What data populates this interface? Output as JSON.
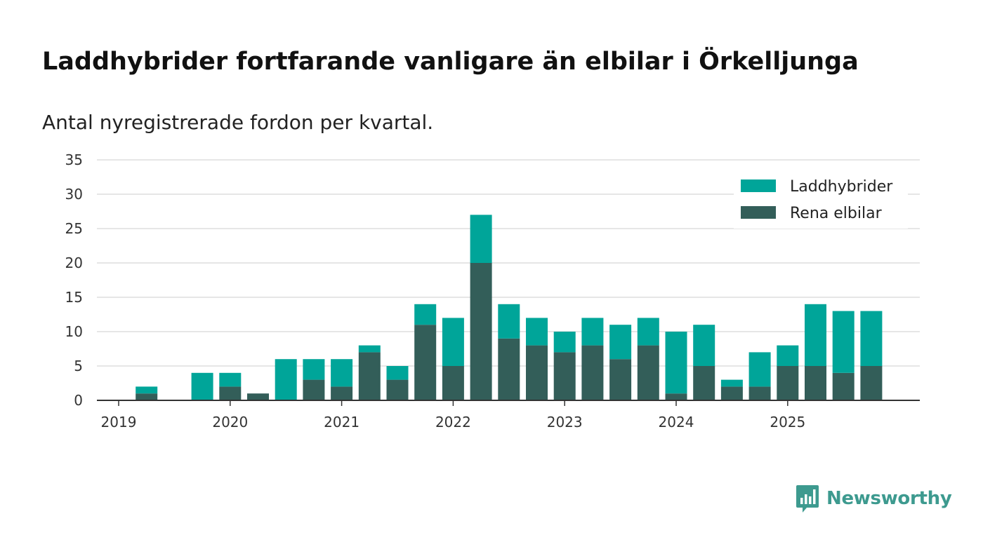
{
  "title": "Laddhybrider fortfarande vanligare än elbilar i Örkelljunga",
  "subtitle": "Antal nyregistrerade fordon per kvartal.",
  "brand": "Newsworthy",
  "colors": {
    "phev": "#00a599",
    "bev": "#335e59",
    "grid": "#dddddd",
    "axis": "#333333"
  },
  "chart_data": {
    "type": "bar",
    "stacked": true,
    "categories": [
      "2019 Q1",
      "2019 Q2",
      "2019 Q3",
      "2019 Q4",
      "2020 Q1",
      "2020 Q2",
      "2020 Q3",
      "2020 Q4",
      "2021 Q1",
      "2021 Q2",
      "2021 Q3",
      "2021 Q4",
      "2022 Q1",
      "2022 Q2",
      "2022 Q3",
      "2022 Q4",
      "2023 Q1",
      "2023 Q2",
      "2023 Q3",
      "2023 Q4",
      "2024 Q1",
      "2024 Q2",
      "2024 Q3",
      "2024 Q4",
      "2025 Q1",
      "2025 Q2",
      "2025 Q3",
      "2025 Q4"
    ],
    "x_tick_labels": [
      "2019",
      "2020",
      "2021",
      "2022",
      "2023",
      "2024",
      "2025"
    ],
    "series": [
      {
        "name": "Rena elbilar",
        "values": [
          0,
          1,
          0,
          0,
          2,
          1,
          0,
          3,
          2,
          7,
          3,
          11,
          5,
          20,
          9,
          8,
          7,
          8,
          6,
          8,
          1,
          5,
          2,
          2,
          5,
          5,
          4,
          5
        ]
      },
      {
        "name": "Laddhybrider",
        "values": [
          0,
          1,
          0,
          4,
          2,
          0,
          6,
          3,
          4,
          1,
          2,
          3,
          7,
          7,
          5,
          4,
          3,
          4,
          5,
          4,
          9,
          6,
          1,
          5,
          3,
          9,
          9,
          8
        ]
      }
    ],
    "legend": [
      "Laddhybrider",
      "Rena elbilar"
    ],
    "legend_position": "top-right",
    "y_ticks": [
      0,
      5,
      10,
      15,
      20,
      25,
      30,
      35
    ],
    "ylim": [
      0,
      35
    ],
    "xlabel": "",
    "ylabel": ""
  }
}
